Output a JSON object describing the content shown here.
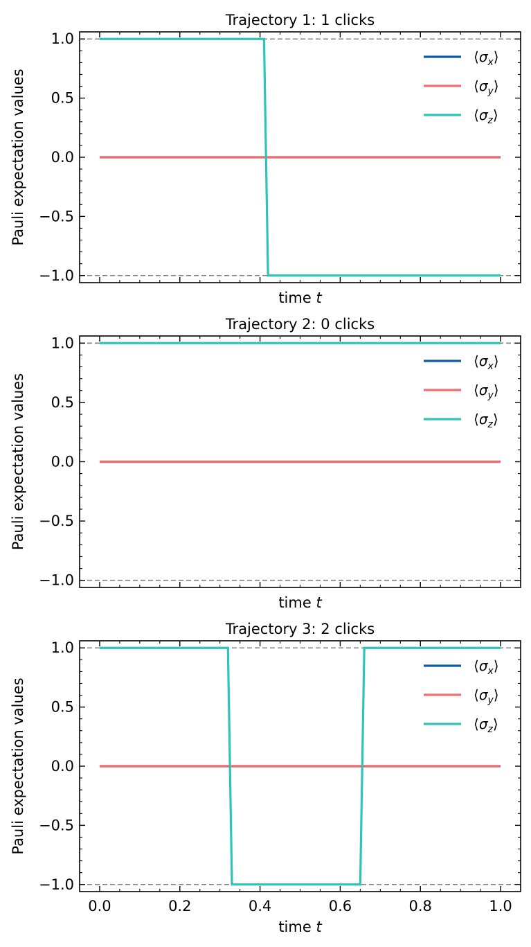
{
  "chart_data": [
    {
      "type": "line",
      "title": "Trajectory 1: 1 clicks",
      "xlabel_prefix": "time ",
      "xlabel_var": "t",
      "ylabel": "Pauli expectation values",
      "xlim": [
        -0.05,
        1.05
      ],
      "ylim": [
        -1.06,
        1.06
      ],
      "xticks": [
        0.0,
        0.2,
        0.4,
        0.6,
        0.8,
        1.0
      ],
      "xtick_labels": [
        "0.0",
        "0.2",
        "0.4",
        "0.6",
        "0.8",
        "1.0"
      ],
      "show_xtick_labels": false,
      "yticks": [
        1.0,
        0.5,
        0.0,
        -0.5,
        -1.0
      ],
      "ytick_labels": [
        "1.0",
        "0.5",
        "0.0",
        "−0.5",
        "−1.0"
      ],
      "reference_lines": [
        1.0,
        -1.0
      ],
      "legend_position": "top-right",
      "series": [
        {
          "name": "x",
          "color": "#0b5aa8",
          "x": [
            0.0,
            1.0
          ],
          "y": [
            0.0,
            0.0
          ]
        },
        {
          "name": "y",
          "color": "#f46d6d",
          "x": [
            0.0,
            1.0
          ],
          "y": [
            0.0,
            0.0
          ]
        },
        {
          "name": "z",
          "color": "#2ec4b6",
          "x": [
            0.0,
            0.41,
            0.42,
            1.0
          ],
          "y": [
            1.0,
            1.0,
            -1.0,
            -1.0
          ]
        }
      ]
    },
    {
      "type": "line",
      "title": "Trajectory 2: 0 clicks",
      "xlabel_prefix": "time ",
      "xlabel_var": "t",
      "ylabel": "Pauli expectation values",
      "xlim": [
        -0.05,
        1.05
      ],
      "ylim": [
        -1.06,
        1.06
      ],
      "xticks": [
        0.0,
        0.2,
        0.4,
        0.6,
        0.8,
        1.0
      ],
      "xtick_labels": [
        "0.0",
        "0.2",
        "0.4",
        "0.6",
        "0.8",
        "1.0"
      ],
      "show_xtick_labels": false,
      "yticks": [
        1.0,
        0.5,
        0.0,
        -0.5,
        -1.0
      ],
      "ytick_labels": [
        "1.0",
        "0.5",
        "0.0",
        "−0.5",
        "−1.0"
      ],
      "reference_lines": [
        1.0,
        -1.0
      ],
      "legend_position": "top-right",
      "series": [
        {
          "name": "x",
          "color": "#0b5aa8",
          "x": [
            0.0,
            1.0
          ],
          "y": [
            0.0,
            0.0
          ]
        },
        {
          "name": "y",
          "color": "#f46d6d",
          "x": [
            0.0,
            1.0
          ],
          "y": [
            0.0,
            0.0
          ]
        },
        {
          "name": "z",
          "color": "#2ec4b6",
          "x": [
            0.0,
            1.0
          ],
          "y": [
            1.0,
            1.0
          ]
        }
      ]
    },
    {
      "type": "line",
      "title": "Trajectory 3: 2 clicks",
      "xlabel_prefix": "time ",
      "xlabel_var": "t",
      "ylabel": "Pauli expectation values",
      "xlim": [
        -0.05,
        1.05
      ],
      "ylim": [
        -1.06,
        1.06
      ],
      "xticks": [
        0.0,
        0.2,
        0.4,
        0.6,
        0.8,
        1.0
      ],
      "xtick_labels": [
        "0.0",
        "0.2",
        "0.4",
        "0.6",
        "0.8",
        "1.0"
      ],
      "show_xtick_labels": true,
      "yticks": [
        1.0,
        0.5,
        0.0,
        -0.5,
        -1.0
      ],
      "ytick_labels": [
        "1.0",
        "0.5",
        "0.0",
        "−0.5",
        "−1.0"
      ],
      "reference_lines": [
        1.0,
        -1.0
      ],
      "legend_position": "top-right",
      "series": [
        {
          "name": "x",
          "color": "#0b5aa8",
          "x": [
            0.0,
            1.0
          ],
          "y": [
            0.0,
            0.0
          ]
        },
        {
          "name": "y",
          "color": "#f46d6d",
          "x": [
            0.0,
            1.0
          ],
          "y": [
            0.0,
            0.0
          ]
        },
        {
          "name": "z",
          "color": "#2ec4b6",
          "x": [
            0.0,
            0.32,
            0.33,
            0.65,
            0.66,
            1.0
          ],
          "y": [
            1.0,
            1.0,
            -1.0,
            -1.0,
            1.0,
            1.0
          ]
        }
      ]
    }
  ]
}
